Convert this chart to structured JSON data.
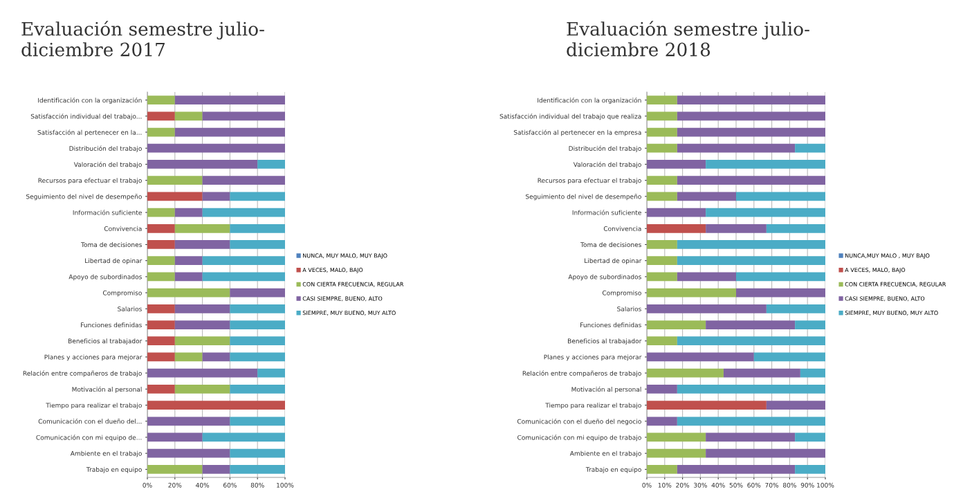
{
  "chart_data": [
    {
      "type": "bar",
      "orientation": "horizontal",
      "stacked": true,
      "title": "Evaluación semestre julio-\ndiciembre 2017",
      "categories": [
        "Identificación con la organización",
        "Satisfacción individual del trabajo...",
        "Satisfacción al pertenecer en la...",
        "Distribución del trabajo",
        "Valoración del trabajo",
        "Recursos para efectuar el trabajo",
        "Seguimiento del nivel de desempeño",
        "Información suficiente",
        "Convivencia",
        "Toma de decisiones",
        "Libertad de opinar",
        "Apoyo de subordinados",
        "Compromiso",
        "Salarios",
        "Funciones definidas",
        "Beneficios al trabajador",
        "Planes y acciones para mejorar",
        "Relación entre compañeros de trabajo",
        "Motivación al personal",
        "Tiempo para realizar el trabajo",
        "Comunicación con el dueño del...",
        "Comunicación con mi equipo de...",
        "Ambiente en el trabajo",
        "Trabajo en equipo"
      ],
      "series": [
        {
          "name": "NUNCA, MUY MALO, MUY BAJO",
          "color": "#4f81bd",
          "values": [
            0,
            0,
            0,
            0,
            0,
            0,
            0,
            0,
            0,
            0,
            0,
            0,
            0,
            0,
            0,
            0,
            0,
            0,
            0,
            0,
            0,
            0,
            0,
            0
          ]
        },
        {
          "name": "A VECES, MALO, BAJO",
          "color": "#c0504d",
          "values": [
            0,
            20,
            0,
            0,
            0,
            0,
            40,
            0,
            20,
            20,
            0,
            0,
            0,
            20,
            20,
            20,
            20,
            0,
            20,
            100,
            0,
            0,
            0,
            0
          ]
        },
        {
          "name": "CON CIERTA FRECUENCIA, REGULAR",
          "color": "#9bbb59",
          "values": [
            20,
            20,
            20,
            0,
            0,
            40,
            0,
            20,
            40,
            0,
            20,
            20,
            60,
            0,
            0,
            40,
            20,
            0,
            40,
            0,
            0,
            0,
            0,
            40
          ]
        },
        {
          "name": "CASI SIEMPRE, BUENO, ALTO",
          "color": "#8064a2",
          "values": [
            80,
            60,
            80,
            100,
            80,
            60,
            20,
            20,
            0,
            40,
            20,
            20,
            40,
            40,
            40,
            0,
            20,
            80,
            0,
            0,
            60,
            40,
            60,
            20
          ]
        },
        {
          "name": "SIEMPRE, MUY BUENO, MUY ALTO",
          "color": "#4bacc6",
          "values": [
            0,
            0,
            0,
            0,
            20,
            0,
            40,
            60,
            40,
            40,
            60,
            60,
            0,
            40,
            40,
            40,
            40,
            20,
            40,
            0,
            40,
            60,
            40,
            40
          ]
        }
      ],
      "xlim": [
        0,
        100
      ],
      "xticks": [
        {
          "value": 0,
          "label": "0%"
        },
        {
          "value": 20,
          "label": "20%"
        },
        {
          "value": 40,
          "label": "40%"
        },
        {
          "value": 60,
          "label": "60%"
        },
        {
          "value": 80,
          "label": "80%"
        },
        {
          "value": 100,
          "label": "100%"
        }
      ],
      "grid": "x",
      "legend": "right"
    },
    {
      "type": "bar",
      "orientation": "horizontal",
      "stacked": true,
      "title": "Evaluación semestre julio-\ndiciembre 2018",
      "categories": [
        "Identificación con la organización",
        "Satisfacción individual del trabajo que realiza",
        "Satisfacción al pertenecer en la empresa",
        "Distribución del trabajo",
        "Valoración del trabajo",
        "Recursos para efectuar el trabajo",
        "Seguimiento del nivel de desempeño",
        "Información suficiente",
        "Convivencia",
        "Toma de decisiones",
        "Libertad de opinar",
        "Apoyo de subordinados",
        "Compromiso",
        "Salarios",
        "Funciones definidas",
        "Beneficios al trabajador",
        "Planes y acciones para mejorar",
        "Relación entre compañeros de trabajo",
        "Motivación al personal",
        "Tiempo para realizar el trabajo",
        "Comunicación con el dueño del negocio",
        "Comunicación con mi equipo de trabajo",
        "Ambiente en el trabajo",
        "Trabajo en equipo"
      ],
      "series": [
        {
          "name": "NUNCA,MUY MALO , MUY BAJO",
          "color": "#4f81bd",
          "values": [
            0,
            0,
            0,
            0,
            0,
            0,
            0,
            0,
            0,
            0,
            0,
            0,
            0,
            0,
            0,
            0,
            0,
            0,
            0,
            0,
            0,
            0,
            0,
            0
          ]
        },
        {
          "name": "A VECES, MALO, BAJO",
          "color": "#c0504d",
          "values": [
            0,
            0,
            0,
            0,
            0,
            0,
            0,
            0,
            33,
            0,
            0,
            0,
            0,
            0,
            0,
            0,
            0,
            0,
            0,
            67,
            0,
            0,
            0,
            0
          ]
        },
        {
          "name": "CON CIERTA FRECUENCIA, REGULAR",
          "color": "#9bbb59",
          "values": [
            17,
            17,
            17,
            17,
            0,
            17,
            17,
            0,
            0,
            17,
            17,
            17,
            50,
            0,
            33,
            17,
            0,
            43,
            0,
            0,
            0,
            33,
            33,
            17
          ]
        },
        {
          "name": "CASI SIEMPRE, BUENO, ALTO",
          "color": "#8064a2",
          "values": [
            83,
            83,
            83,
            66,
            33,
            83,
            33,
            33,
            34,
            0,
            0,
            33,
            50,
            67,
            50,
            0,
            60,
            43,
            17,
            33,
            17,
            50,
            67,
            66
          ]
        },
        {
          "name": "SIEMPRE, MUY BUENO, MUY ALTO",
          "color": "#4bacc6",
          "values": [
            0,
            0,
            0,
            17,
            67,
            0,
            50,
            67,
            33,
            83,
            83,
            50,
            0,
            33,
            17,
            83,
            40,
            14,
            83,
            0,
            83,
            17,
            0,
            17
          ]
        }
      ],
      "xlim": [
        0,
        100
      ],
      "xticks": [
        {
          "value": 0,
          "label": "0%"
        },
        {
          "value": 10,
          "label": "10%"
        },
        {
          "value": 20,
          "label": "20%"
        },
        {
          "value": 30,
          "label": "30%"
        },
        {
          "value": 40,
          "label": "40%"
        },
        {
          "value": 50,
          "label": "50%"
        },
        {
          "value": 60,
          "label": "60%"
        },
        {
          "value": 70,
          "label": "70%"
        },
        {
          "value": 80,
          "label": "80%"
        },
        {
          "value": 90,
          "label": "90%"
        },
        {
          "value": 100,
          "label": "100%"
        }
      ],
      "grid": "x",
      "legend": "right"
    }
  ]
}
